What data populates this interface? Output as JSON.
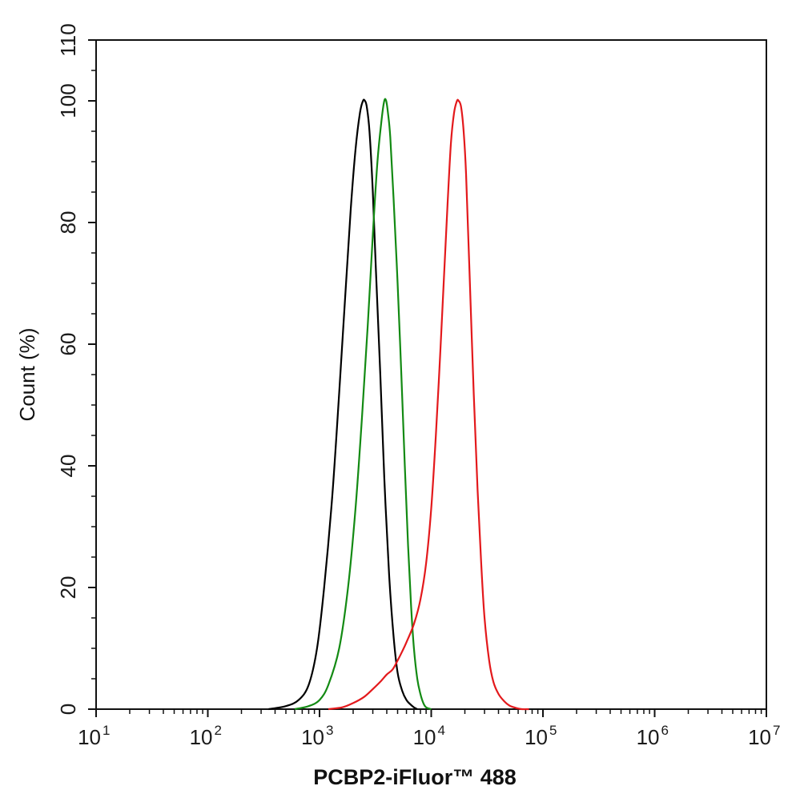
{
  "chart_data": {
    "type": "line",
    "title": "",
    "xlabel": "PCBP2-iFluor™ 488",
    "ylabel": "Count  (%)",
    "xscale": "log",
    "xlim": [
      10,
      10000000
    ],
    "ylim": [
      0,
      110
    ],
    "grid": false,
    "legend": "none",
    "x_ticks": [
      {
        "base": "10",
        "exp": "1"
      },
      {
        "base": "10",
        "exp": "2"
      },
      {
        "base": "10",
        "exp": "3"
      },
      {
        "base": "10",
        "exp": "4"
      },
      {
        "base": "10",
        "exp": "5"
      },
      {
        "base": "10",
        "exp": "6"
      },
      {
        "base": "10",
        "exp": "7"
      }
    ],
    "y_ticks": [
      "0",
      "20",
      "40",
      "60",
      "80",
      "100",
      "110"
    ],
    "series": [
      {
        "color": "#000000",
        "x": [
          350,
          500,
          650,
          800,
          950,
          1100,
          1300,
          1500,
          1700,
          1900,
          2100,
          2300,
          2450,
          2550,
          2650,
          2800,
          3000,
          3200,
          3500,
          3800,
          4200,
          4600,
          5000,
          5500,
          6000,
          6500,
          7000,
          7500
        ],
        "y": [
          0,
          0.5,
          1.5,
          4,
          10,
          20,
          35,
          52,
          68,
          82,
          92,
          98,
          100,
          100,
          99,
          95,
          85,
          72,
          55,
          38,
          22,
          12,
          6,
          3,
          1.5,
          0.8,
          0.3,
          0
        ]
      },
      {
        "color": "#138a13",
        "x": [
          600,
          800,
          1000,
          1200,
          1500,
          1800,
          2100,
          2400,
          2700,
          3000,
          3300,
          3600,
          3800,
          3950,
          4100,
          4300,
          4600,
          5000,
          5400,
          5800,
          6200,
          6600,
          7000,
          7500,
          8000,
          8500,
          9000,
          10000
        ],
        "y": [
          0,
          0.5,
          1.5,
          4,
          10,
          20,
          33,
          48,
          63,
          78,
          90,
          97,
          100,
          100,
          98,
          94,
          84,
          70,
          55,
          40,
          27,
          17,
          10,
          5,
          2.5,
          1,
          0.3,
          0
        ]
      },
      {
        "color": "#e3191c",
        "x": [
          1200,
          1600,
          2000,
          2500,
          3000,
          3500,
          4000,
          4500,
          5000,
          5500,
          6000,
          7000,
          8000,
          9000,
          10000,
          11000,
          12000,
          13000,
          14000,
          15000,
          16000,
          17000,
          17600,
          18500,
          19500,
          20500,
          22000,
          24000,
          26000,
          28000,
          30000,
          33000,
          36000,
          40000,
          45000,
          50000,
          55000,
          60000,
          65000,
          75000
        ],
        "y": [
          0,
          0.3,
          1,
          2,
          3.3,
          4.5,
          5.7,
          6.5,
          8,
          9.5,
          11,
          14,
          18,
          24,
          33,
          45,
          58,
          71,
          83,
          93,
          98,
          100,
          100,
          99,
          95,
          88,
          72,
          52,
          36,
          24,
          15,
          8,
          4.5,
          2.5,
          1.3,
          0.6,
          0.3,
          0.1,
          0,
          0
        ]
      }
    ]
  }
}
